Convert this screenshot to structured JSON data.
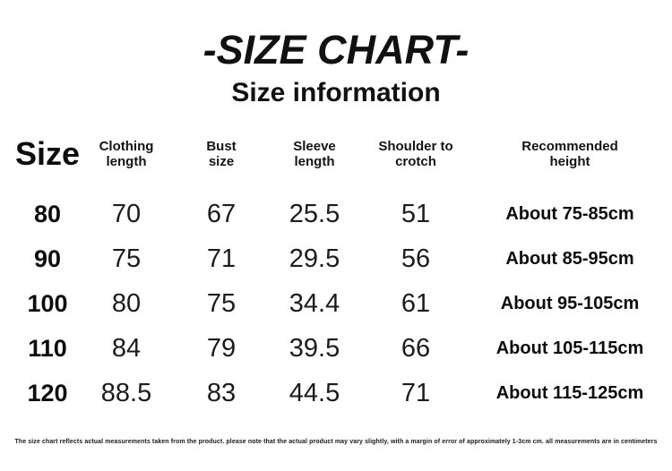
{
  "page": {
    "title": "-SIZE CHART-",
    "subtitle": "Size information",
    "footnote": "The size chart reflects actual measurements taken from the product. please note that the actual product may vary slightly, with a margin of error of approximately 1-3cm cm. all measurements are in centimeters"
  },
  "colors": {
    "background": "#ffffff",
    "text": "#111111"
  },
  "table": {
    "display_headers": [
      "Size",
      "Clothing\nlength",
      "Bust\nsize",
      "Sleeve\nlength",
      "Shoulder to\ncrotch",
      "Recommended\nheight"
    ]
  },
  "chart_data": {
    "type": "table",
    "title": "-SIZE CHART-",
    "subtitle": "Size information",
    "columns": [
      "Size",
      "Clothing length",
      "Bust size",
      "Sleeve length",
      "Shoulder to crotch",
      "Recommended height"
    ],
    "rows": [
      [
        "80",
        "70",
        "67",
        "25.5",
        "51",
        "About 75-85cm"
      ],
      [
        "90",
        "75",
        "71",
        "29.5",
        "56",
        "About 85-95cm"
      ],
      [
        "100",
        "80",
        "75",
        "34.4",
        "61",
        "About 95-105cm"
      ],
      [
        "110",
        "84",
        "79",
        "39.5",
        "66",
        "About 105-115cm"
      ],
      [
        "120",
        "88.5",
        "83",
        "44.5",
        "71",
        "About 115-125cm"
      ]
    ],
    "units": "centimeters"
  }
}
